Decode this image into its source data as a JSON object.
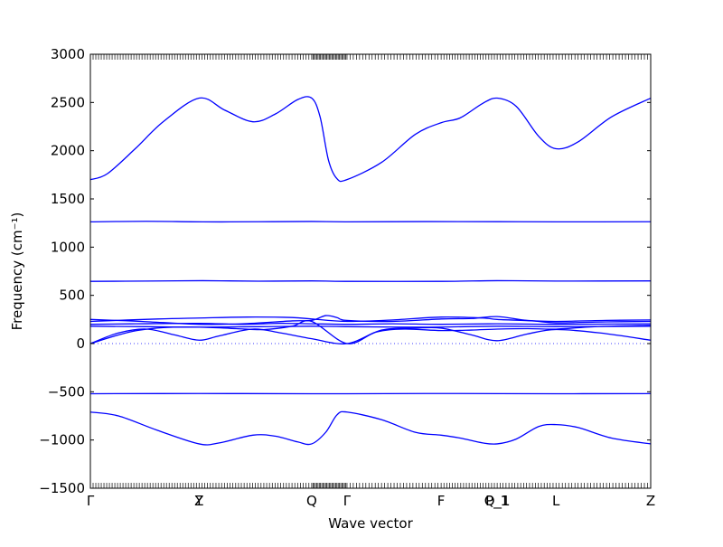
{
  "chart_data": {
    "type": "line",
    "xlabel": "Wave vector",
    "ylabel": "Frequency (cm⁻¹)",
    "ylim": [
      -1500,
      3000
    ],
    "yticks": [
      -1500,
      -1000,
      -500,
      0,
      500,
      1000,
      1500,
      2000,
      2500,
      3000
    ],
    "grid": false,
    "line_color": "#0000ff",
    "zero_line": "dotted",
    "high_symmetry_points": [
      {
        "label": "Γ",
        "x": 0.0
      },
      {
        "label": "Y",
        "x": 0.194
      },
      {
        "label": "Z",
        "x": 0.194
      },
      {
        "label": "Q",
        "x": 0.395
      },
      {
        "label": "Γ",
        "x": 0.458
      },
      {
        "label": "F",
        "x": 0.626
      },
      {
        "label": "P_1",
        "x": 0.726
      },
      {
        "label": "Q_1",
        "x": 0.726
      },
      {
        "label": "L",
        "x": 0.831
      },
      {
        "label": "Z",
        "x": 1.0
      }
    ],
    "series": [
      {
        "values": [
          [
            0.0,
            1700
          ],
          [
            0.03,
            1760
          ],
          [
            0.08,
            2020
          ],
          [
            0.13,
            2300
          ],
          [
            0.194,
            2545
          ],
          [
            0.24,
            2420
          ],
          [
            0.29,
            2300
          ],
          [
            0.33,
            2380
          ],
          [
            0.37,
            2530
          ],
          [
            0.395,
            2545
          ],
          [
            0.41,
            2350
          ],
          [
            0.425,
            1900
          ],
          [
            0.44,
            1710
          ],
          [
            0.458,
            1700
          ],
          [
            0.52,
            1880
          ],
          [
            0.58,
            2170
          ],
          [
            0.626,
            2290
          ],
          [
            0.66,
            2340
          ],
          [
            0.7,
            2490
          ],
          [
            0.726,
            2545
          ],
          [
            0.76,
            2460
          ],
          [
            0.8,
            2150
          ],
          [
            0.831,
            2020
          ],
          [
            0.87,
            2090
          ],
          [
            0.93,
            2350
          ],
          [
            1.0,
            2545
          ]
        ]
      },
      {
        "values": [
          [
            0.0,
            1262
          ],
          [
            0.1,
            1268
          ],
          [
            0.2,
            1262
          ],
          [
            0.3,
            1263
          ],
          [
            0.395,
            1266
          ],
          [
            0.458,
            1262
          ],
          [
            0.6,
            1265
          ],
          [
            0.726,
            1264
          ],
          [
            0.831,
            1262
          ],
          [
            1.0,
            1263
          ]
        ]
      },
      {
        "values": [
          [
            0.0,
            645
          ],
          [
            0.1,
            648
          ],
          [
            0.2,
            652
          ],
          [
            0.3,
            647
          ],
          [
            0.395,
            650
          ],
          [
            0.458,
            645
          ],
          [
            0.626,
            645
          ],
          [
            0.726,
            652
          ],
          [
            0.831,
            648
          ],
          [
            1.0,
            650
          ]
        ]
      },
      {
        "values": [
          [
            0.0,
            250
          ],
          [
            0.09,
            230
          ],
          [
            0.194,
            200
          ],
          [
            0.27,
            205
          ],
          [
            0.36,
            235
          ],
          [
            0.395,
            240
          ],
          [
            0.42,
            290
          ],
          [
            0.44,
            270
          ],
          [
            0.458,
            240
          ],
          [
            0.54,
            230
          ],
          [
            0.626,
            255
          ],
          [
            0.68,
            260
          ],
          [
            0.726,
            280
          ],
          [
            0.78,
            240
          ],
          [
            0.831,
            230
          ],
          [
            0.92,
            240
          ],
          [
            1.0,
            245
          ]
        ]
      },
      {
        "values": [
          [
            0.0,
            230
          ],
          [
            0.12,
            255
          ],
          [
            0.194,
            265
          ],
          [
            0.28,
            275
          ],
          [
            0.36,
            270
          ],
          [
            0.395,
            255
          ],
          [
            0.458,
            230
          ],
          [
            0.54,
            245
          ],
          [
            0.626,
            275
          ],
          [
            0.7,
            265
          ],
          [
            0.726,
            250
          ],
          [
            0.79,
            235
          ],
          [
            0.831,
            215
          ],
          [
            0.92,
            225
          ],
          [
            1.0,
            230
          ]
        ]
      },
      {
        "values": [
          [
            0.0,
            200
          ],
          [
            0.08,
            205
          ],
          [
            0.194,
            210
          ],
          [
            0.27,
            200
          ],
          [
            0.34,
            210
          ],
          [
            0.395,
            205
          ],
          [
            0.458,
            200
          ],
          [
            0.54,
            205
          ],
          [
            0.626,
            200
          ],
          [
            0.726,
            205
          ],
          [
            0.831,
            200
          ],
          [
            1.0,
            205
          ]
        ]
      },
      {
        "values": [
          [
            0.0,
            180
          ],
          [
            0.1,
            175
          ],
          [
            0.194,
            170
          ],
          [
            0.3,
            175
          ],
          [
            0.395,
            180
          ],
          [
            0.458,
            175
          ],
          [
            0.6,
            170
          ],
          [
            0.726,
            180
          ],
          [
            0.831,
            175
          ],
          [
            1.0,
            180
          ]
        ]
      },
      {
        "values": [
          [
            0.0,
            0
          ],
          [
            0.05,
            110
          ],
          [
            0.1,
            150
          ],
          [
            0.15,
            90
          ],
          [
            0.194,
            35
          ],
          [
            0.23,
            80
          ],
          [
            0.29,
            150
          ],
          [
            0.34,
            110
          ],
          [
            0.395,
            50
          ],
          [
            0.458,
            0
          ],
          [
            0.52,
            140
          ],
          [
            0.58,
            160
          ],
          [
            0.626,
            160
          ],
          [
            0.68,
            90
          ],
          [
            0.726,
            30
          ],
          [
            0.78,
            100
          ],
          [
            0.831,
            145
          ],
          [
            0.91,
            110
          ],
          [
            1.0,
            35
          ]
        ]
      },
      {
        "values": [
          [
            0.0,
            0
          ],
          [
            0.07,
            120
          ],
          [
            0.13,
            165
          ],
          [
            0.194,
            170
          ],
          [
            0.26,
            155
          ],
          [
            0.31,
            145
          ],
          [
            0.36,
            180
          ],
          [
            0.395,
            230
          ],
          [
            0.458,
            0
          ],
          [
            0.51,
            120
          ],
          [
            0.56,
            150
          ],
          [
            0.626,
            135
          ],
          [
            0.68,
            140
          ],
          [
            0.726,
            150
          ],
          [
            0.78,
            155
          ],
          [
            0.831,
            150
          ],
          [
            0.9,
            175
          ],
          [
            1.0,
            190
          ]
        ]
      },
      {
        "values": [
          [
            0.0,
            -520
          ],
          [
            0.194,
            -518
          ],
          [
            0.395,
            -520
          ],
          [
            0.458,
            -520
          ],
          [
            0.626,
            -518
          ],
          [
            0.831,
            -520
          ],
          [
            1.0,
            -519
          ]
        ]
      },
      {
        "values": [
          [
            0.0,
            -710
          ],
          [
            0.05,
            -750
          ],
          [
            0.12,
            -900
          ],
          [
            0.194,
            -1040
          ],
          [
            0.23,
            -1030
          ],
          [
            0.29,
            -950
          ],
          [
            0.33,
            -960
          ],
          [
            0.37,
            -1020
          ],
          [
            0.395,
            -1040
          ],
          [
            0.42,
            -920
          ],
          [
            0.44,
            -740
          ],
          [
            0.458,
            -710
          ],
          [
            0.52,
            -790
          ],
          [
            0.58,
            -920
          ],
          [
            0.626,
            -950
          ],
          [
            0.66,
            -980
          ],
          [
            0.7,
            -1030
          ],
          [
            0.726,
            -1040
          ],
          [
            0.76,
            -990
          ],
          [
            0.8,
            -860
          ],
          [
            0.831,
            -840
          ],
          [
            0.87,
            -870
          ],
          [
            0.93,
            -980
          ],
          [
            1.0,
            -1040
          ]
        ]
      }
    ]
  }
}
